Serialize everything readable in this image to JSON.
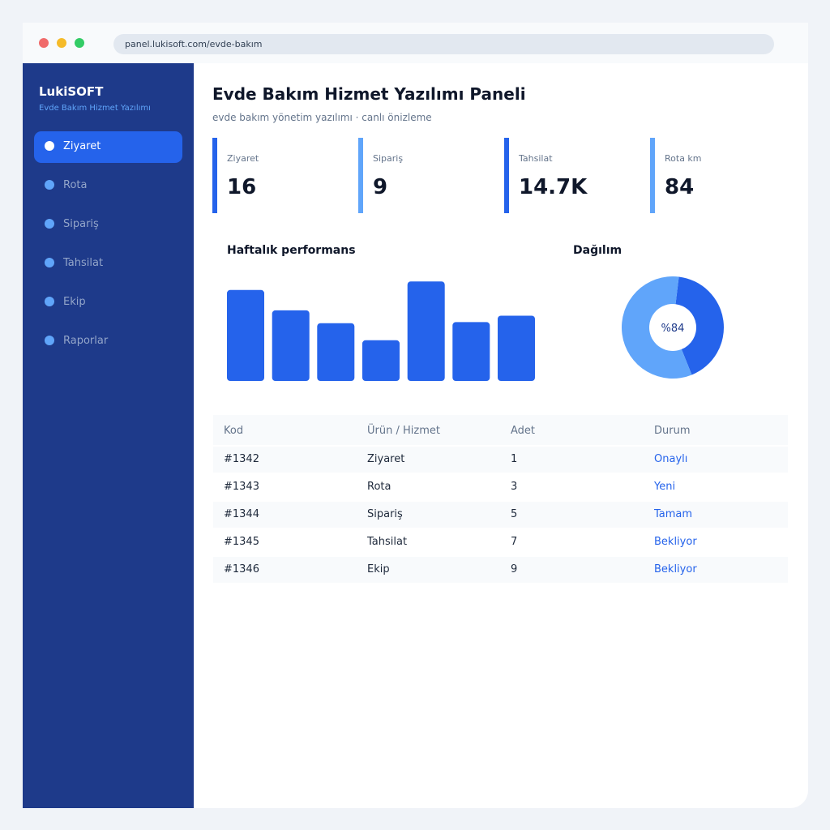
{
  "browser": {
    "url": "panel.lukisoft.com/evde-bakım"
  },
  "sidebar": {
    "brand": "LukiSOFT",
    "brand_sub": "Evde Bakım Hizmet Yazılımı",
    "items": [
      {
        "label": "Ziyaret",
        "active": true
      },
      {
        "label": "Rota"
      },
      {
        "label": "Sipariş"
      },
      {
        "label": "Tahsilat"
      },
      {
        "label": "Ekip"
      },
      {
        "label": "Raporlar"
      }
    ]
  },
  "header": {
    "title": "Evde Bakım Hizmet Yazılımı Paneli",
    "subtitle": "evde bakım yönetim yazılımı · canlı önizleme"
  },
  "kpis": [
    {
      "label": "Ziyaret",
      "value": "16",
      "color": "#2563eb"
    },
    {
      "label": "Sipariş",
      "value": "9",
      "color": "#60a5fa"
    },
    {
      "label": "Tahsilat",
      "value": "14.7K",
      "color": "#2563eb"
    },
    {
      "label": "Rota km",
      "value": "84",
      "color": "#60a5fa"
    }
  ],
  "colors": {
    "accent": "#2563eb",
    "accent_light": "#60a5fa",
    "sidebar": "#1e3a8a"
  },
  "chart_data": [
    {
      "type": "bar",
      "title": "Haftalık performans",
      "categories": [
        "",
        "",
        "",
        "",
        "",
        "",
        ""
      ],
      "values": [
        85,
        66,
        54,
        38,
        93,
        55,
        61
      ],
      "ylim": [
        0,
        100
      ],
      "grid": false,
      "color": "#2563eb"
    },
    {
      "type": "pie",
      "title": "Dağılım",
      "center_label": "%84",
      "values": [
        42,
        58
      ],
      "colors": [
        "#2563eb",
        "#60a5fa"
      ]
    }
  ],
  "table": {
    "headers": [
      "Kod",
      "Ürün / Hizmet",
      "Adet",
      "Durum"
    ],
    "rows": [
      [
        "#1342",
        "Ziyaret",
        "1",
        "Onaylı"
      ],
      [
        "#1343",
        "Rota",
        "3",
        "Yeni"
      ],
      [
        "#1344",
        "Sipariş",
        "5",
        "Tamam"
      ],
      [
        "#1345",
        "Tahsilat",
        "7",
        "Bekliyor"
      ],
      [
        "#1346",
        "Ekip",
        "9",
        "Bekliyor"
      ]
    ]
  }
}
